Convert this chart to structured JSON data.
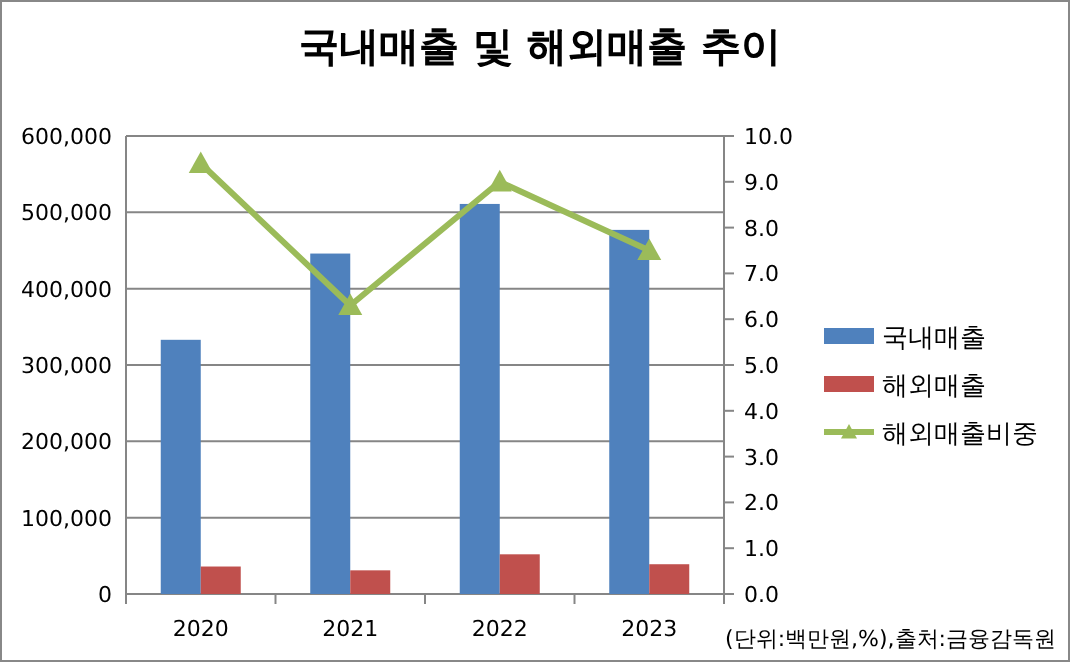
{
  "chart_data": {
    "type": "bar",
    "title": "국내매출 및 해외매출 추이",
    "categories": [
      "2020",
      "2021",
      "2022",
      "2023"
    ],
    "series": [
      {
        "name": "국내매출",
        "color": "#4f81bd",
        "values": [
          333000,
          446000,
          511000,
          477000
        ]
      },
      {
        "name": "해외매출",
        "color": "#c0504d",
        "values": [
          36000,
          31000,
          52000,
          39000
        ]
      },
      {
        "name": "해외매출비중",
        "type": "line",
        "axis": "y2",
        "marker": "triangle",
        "color": "#9bbb59",
        "values": [
          9.4,
          6.3,
          9.0,
          7.5
        ]
      }
    ],
    "ylim": [
      0,
      600000
    ],
    "yticks": [
      {
        "value": 0,
        "label": "0"
      },
      {
        "value": 100000,
        "label": "100,000"
      },
      {
        "value": 200000,
        "label": "200,000"
      },
      {
        "value": 300000,
        "label": "300,000"
      },
      {
        "value": 400000,
        "label": "400,000"
      },
      {
        "value": 500000,
        "label": "500,000"
      },
      {
        "value": 600000,
        "label": "600,000"
      }
    ],
    "y2lim": [
      0,
      10
    ],
    "y2ticks": [
      {
        "value": 0,
        "label": "0.0"
      },
      {
        "value": 1,
        "label": "1.0"
      },
      {
        "value": 2,
        "label": "2.0"
      },
      {
        "value": 3,
        "label": "3.0"
      },
      {
        "value": 4,
        "label": "4.0"
      },
      {
        "value": 5,
        "label": "5.0"
      },
      {
        "value": 6,
        "label": "6.0"
      },
      {
        "value": 7,
        "label": "7.0"
      },
      {
        "value": 8,
        "label": "8.0"
      },
      {
        "value": 9,
        "label": "9.0"
      },
      {
        "value": 10,
        "label": "10.0"
      }
    ],
    "grid": "y",
    "legend": "right",
    "annotations": [
      "(단위:백만원,%),출처:금융감독원"
    ]
  }
}
